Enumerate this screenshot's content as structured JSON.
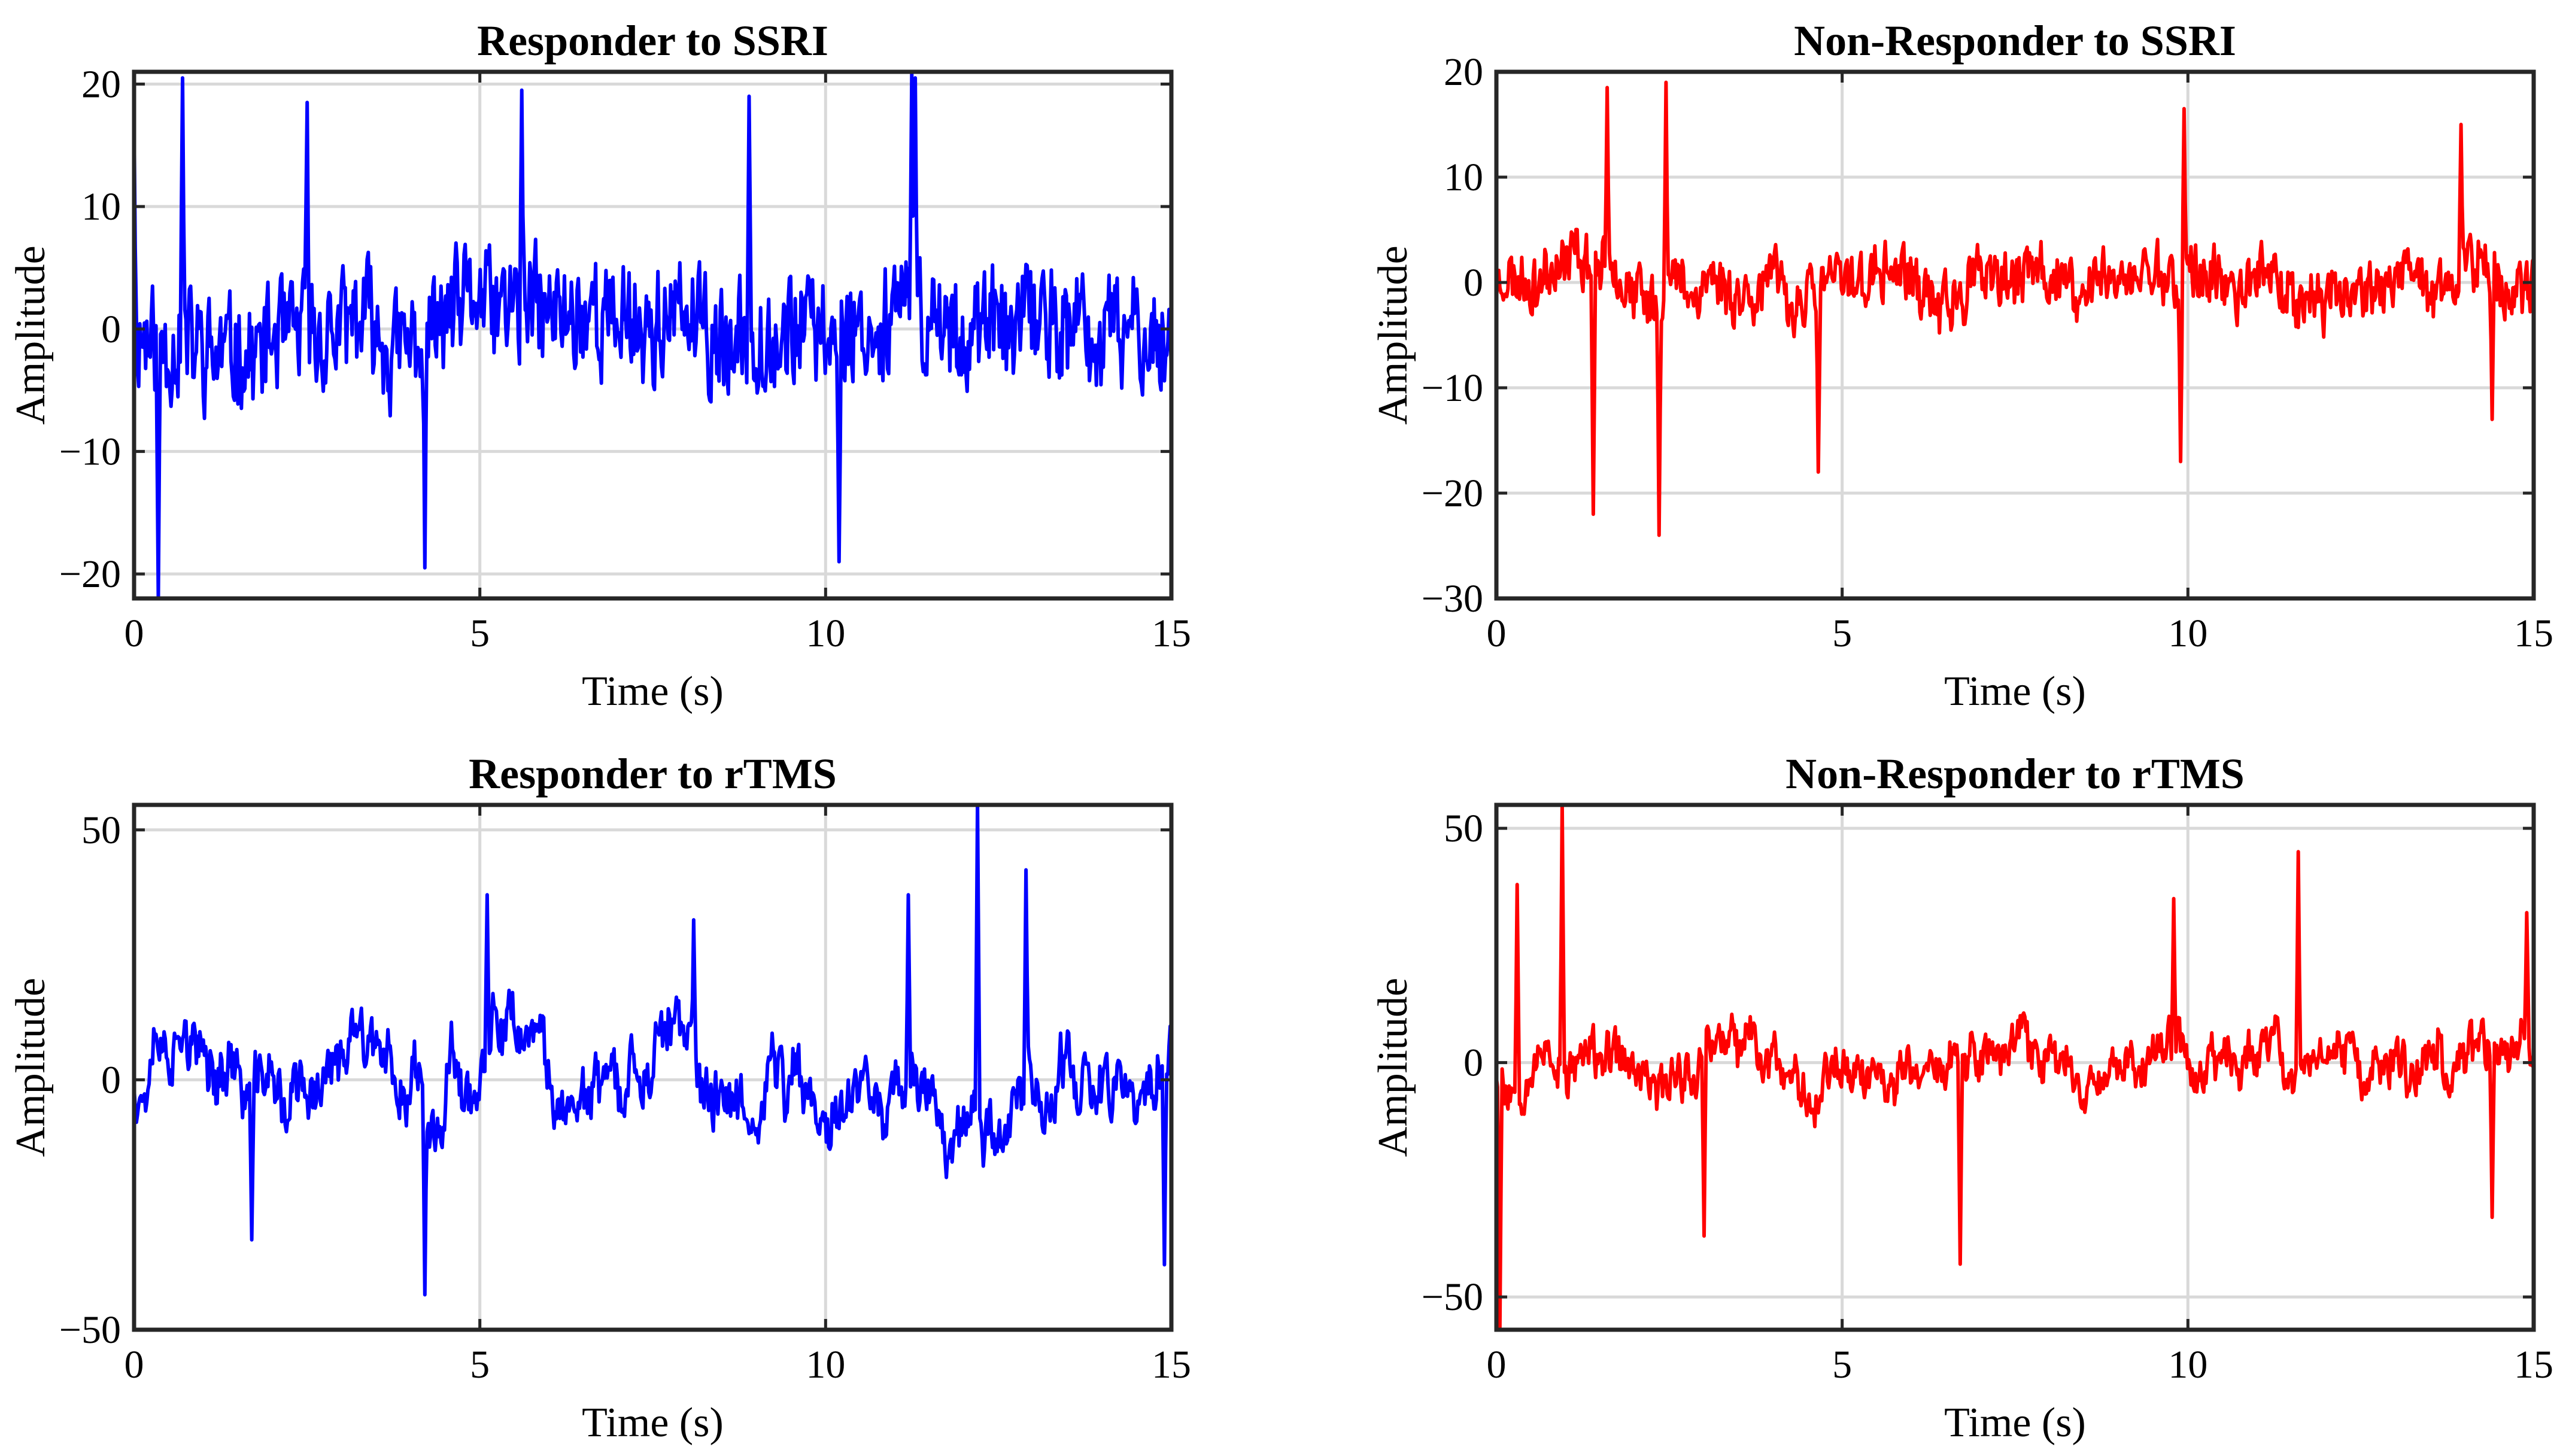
{
  "colors": {
    "responder": "#0000ff",
    "non_responder": "#ff0000",
    "grid": "#d9d9d9",
    "axes": "#262626"
  },
  "chart_data": [
    {
      "type": "line",
      "title": "Responder to SSRI",
      "xlabel": "Time (s)",
      "ylabel": "Amplitude",
      "xlim": [
        0,
        15
      ],
      "ylim": [
        -22,
        21
      ],
      "xticks": [
        0,
        5,
        10,
        15
      ],
      "yticks": [
        -20,
        -10,
        0,
        10,
        20
      ],
      "xtick_labels": [
        "0",
        "5",
        "10",
        "15"
      ],
      "ytick_labels": [
        "−20",
        "−10",
        "0",
        "10",
        "20"
      ],
      "grid": true,
      "series": [
        {
          "name": "Responder to SSRI",
          "color": "#0000ff",
          "duration_s": 15,
          "n_points": 900,
          "amplitude": 7,
          "smooth": 0.15,
          "seed": 11,
          "peaks": [
            [
              0.0,
              17
            ],
            [
              0.35,
              -22
            ],
            [
              0.7,
              20.5
            ],
            [
              2.5,
              18.5
            ],
            [
              4.2,
              -19.5
            ],
            [
              5.6,
              19.5
            ],
            [
              10.2,
              -19
            ],
            [
              11.25,
              21
            ],
            [
              11.3,
              20.5
            ],
            [
              8.9,
              19
            ]
          ]
        }
      ]
    },
    {
      "type": "line",
      "title": "Non-Responder to SSRI",
      "xlabel": "Time (s)",
      "ylabel": "Amplitude",
      "xlim": [
        0,
        15
      ],
      "ylim": [
        -30,
        20
      ],
      "xticks": [
        0,
        5,
        10,
        15
      ],
      "yticks": [
        -30,
        -20,
        -10,
        0,
        10,
        20
      ],
      "xtick_labels": [
        "0",
        "5",
        "10",
        "15"
      ],
      "ytick_labels": [
        "−30",
        "−20",
        "−10",
        "0",
        "10",
        "20"
      ],
      "grid": true,
      "series": [
        {
          "name": "Non-Responder to SSRI",
          "color": "#ff0000",
          "duration_s": 15,
          "n_points": 900,
          "amplitude": 4.5,
          "smooth": 0.3,
          "seed": 23,
          "peaks": [
            [
              1.4,
              -22
            ],
            [
              1.6,
              18.5
            ],
            [
              2.35,
              -24
            ],
            [
              2.45,
              19
            ],
            [
              4.65,
              -18
            ],
            [
              9.95,
              16.5
            ],
            [
              9.9,
              -17
            ],
            [
              13.95,
              15
            ],
            [
              14.4,
              -13
            ]
          ]
        }
      ]
    },
    {
      "type": "line",
      "title": "Responder to rTMS",
      "xlabel": "Time (s)",
      "ylabel": "Amplitude",
      "xlim": [
        0,
        15
      ],
      "ylim": [
        -50,
        55
      ],
      "xticks": [
        0,
        5,
        10,
        15
      ],
      "yticks": [
        -50,
        0,
        50
      ],
      "xtick_labels": [
        "0",
        "5",
        "10",
        "15"
      ],
      "ytick_labels": [
        "−50",
        "0",
        "50"
      ],
      "grid": true,
      "series": [
        {
          "name": "Responder to rTMS",
          "color": "#0000ff",
          "duration_s": 15,
          "n_points": 900,
          "amplitude": 11,
          "smooth": 0.7,
          "seed": 37,
          "peaks": [
            [
              1.7,
              -32
            ],
            [
              4.2,
              -43
            ],
            [
              5.1,
              37
            ],
            [
              8.1,
              32
            ],
            [
              11.2,
              37
            ],
            [
              12.2,
              55
            ],
            [
              12.9,
              42
            ],
            [
              14.9,
              -37
            ]
          ]
        }
      ]
    },
    {
      "type": "line",
      "title": "Non-Responder to rTMS",
      "xlabel": "Time (s)",
      "ylabel": "Amplitude",
      "xlim": [
        0,
        15
      ],
      "ylim": [
        -57,
        55
      ],
      "xticks": [
        0,
        5,
        10,
        15
      ],
      "yticks": [
        -50,
        0,
        50
      ],
      "xtick_labels": [
        "0",
        "5",
        "10",
        "15"
      ],
      "ytick_labels": [
        "−50",
        "0",
        "50"
      ],
      "grid": true,
      "series": [
        {
          "name": "Non-Responder to rTMS",
          "color": "#ff0000",
          "duration_s": 15,
          "n_points": 900,
          "amplitude": 9,
          "smooth": 0.55,
          "seed": 53,
          "peaks": [
            [
              0.05,
              -57
            ],
            [
              0.3,
              38
            ],
            [
              0.95,
              55
            ],
            [
              3.0,
              -37
            ],
            [
              6.7,
              -43
            ],
            [
              9.8,
              35
            ],
            [
              11.6,
              45
            ],
            [
              14.4,
              -33
            ],
            [
              14.9,
              32
            ]
          ]
        }
      ]
    }
  ]
}
